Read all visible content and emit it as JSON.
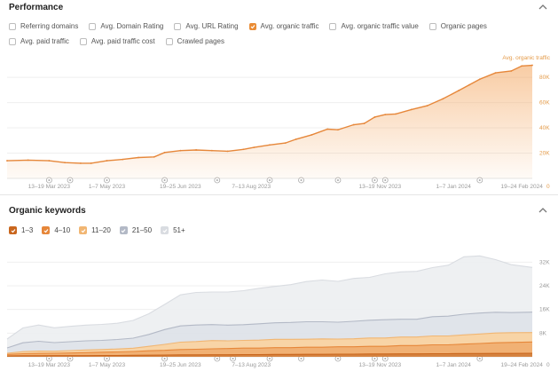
{
  "performance": {
    "title": "Performance",
    "metrics": [
      {
        "label": "Referring domains",
        "checked": false
      },
      {
        "label": "Avg. Domain Rating",
        "checked": false
      },
      {
        "label": "Avg. URL Rating",
        "checked": false
      },
      {
        "label": "Avg. organic traffic",
        "checked": true
      },
      {
        "label": "Avg. organic traffic value",
        "checked": false
      },
      {
        "label": "Organic pages",
        "checked": false
      },
      {
        "label": "Avg. paid traffic",
        "checked": false
      },
      {
        "label": "Avg. paid traffic cost",
        "checked": false
      },
      {
        "label": "Crawled pages",
        "checked": false
      }
    ]
  },
  "keywords": {
    "title": "Organic keywords",
    "legend": [
      {
        "label": "1–3",
        "checked": true,
        "color": "#c9661d"
      },
      {
        "label": "4–10",
        "checked": true,
        "color": "#e6873a"
      },
      {
        "label": "11–20",
        "checked": true,
        "color": "#f1b673"
      },
      {
        "label": "21–50",
        "checked": true,
        "color": "#b3b9c6"
      },
      {
        "label": "51+",
        "checked": true,
        "color": "#d9dce1"
      }
    ]
  },
  "colors": {
    "accent": "#ea8c35",
    "grid": "#efefef"
  },
  "chart_data": [
    {
      "type": "area",
      "series_label": "Avg. organic traffic",
      "ylim": [
        0,
        92000
      ],
      "yticks": [
        20000,
        40000,
        60000,
        80000
      ],
      "ytick_labels": [
        "20K",
        "40K",
        "60K",
        "80K"
      ],
      "zero_label": "0",
      "xlim": [
        0,
        100
      ],
      "xtick_labels": [
        {
          "t": 8,
          "label": "13–19 Mar 2023"
        },
        {
          "t": 19,
          "label": "1–7 May 2023"
        },
        {
          "t": 33,
          "label": "19–25 Jun 2023"
        },
        {
          "t": 46.5,
          "label": "7–13 Aug 2023"
        },
        {
          "t": 71,
          "label": "13–19 Nov 2023"
        },
        {
          "t": 85,
          "label": "1–7 Jan 2024"
        },
        {
          "t": 98,
          "label": "19–24 Feb 2024"
        }
      ],
      "annotation_t": [
        8,
        12,
        19,
        30,
        40,
        50,
        56,
        63,
        70,
        72,
        90
      ],
      "x": [
        0,
        4,
        8,
        11,
        14,
        16,
        19,
        22,
        25,
        28,
        30,
        33,
        36,
        39,
        42,
        45,
        47,
        50,
        53,
        55,
        58,
        61,
        63,
        66,
        68,
        70,
        72,
        74,
        77,
        80,
        83,
        86,
        88,
        90,
        93,
        96,
        98,
        100
      ],
      "y": [
        14000,
        14500,
        14000,
        12500,
        12000,
        12000,
        14000,
        15000,
        16500,
        17000,
        20500,
        22000,
        22500,
        22000,
        21500,
        23000,
        24500,
        26500,
        28000,
        31000,
        34500,
        39000,
        38500,
        42500,
        43500,
        48500,
        50500,
        51000,
        54500,
        57500,
        63000,
        69500,
        74000,
        78500,
        83500,
        85000,
        89000,
        89500
      ]
    },
    {
      "type": "area",
      "stacked": true,
      "ylim": [
        0,
        36000
      ],
      "yticks": [
        8000,
        16000,
        24000,
        32000
      ],
      "ytick_labels": [
        "8K",
        "16K",
        "24K",
        "32K"
      ],
      "zero_label": "0",
      "xlim": [
        0,
        100
      ],
      "xtick_labels": [
        {
          "t": 8,
          "label": "13–19 Mar 2023"
        },
        {
          "t": 19,
          "label": "1–7 May 2023"
        },
        {
          "t": 33,
          "label": "19–25 Jun 2023"
        },
        {
          "t": 46.5,
          "label": "7–13 Aug 2023"
        },
        {
          "t": 71,
          "label": "13–19 Nov 2023"
        },
        {
          "t": 85,
          "label": "1–7 Jan 2024"
        },
        {
          "t": 98,
          "label": "19–24 Feb 2024"
        }
      ],
      "annotation_t": [
        8,
        12,
        19,
        30,
        40,
        43,
        50,
        56,
        63,
        70,
        72,
        90
      ],
      "x": [
        0,
        3,
        6,
        9,
        12,
        15,
        18,
        21,
        24,
        27,
        30,
        33,
        36,
        39,
        42,
        45,
        48,
        51,
        54,
        57,
        60,
        63,
        66,
        69,
        72,
        75,
        78,
        81,
        84,
        87,
        90,
        93,
        96,
        100
      ],
      "series": [
        {
          "name": "1–3",
          "values": [
            300,
            350,
            350,
            400,
            400,
            400,
            450,
            450,
            500,
            550,
            600,
            650,
            650,
            700,
            700,
            750,
            750,
            800,
            800,
            850,
            850,
            900,
            900,
            950,
            950,
            1000,
            1000,
            1050,
            1050,
            1100,
            1100,
            1150,
            1150,
            1200
          ]
        },
        {
          "name": "4–10",
          "values": [
            500,
            700,
            800,
            800,
            900,
            1000,
            1100,
            1200,
            1300,
            1500,
            1600,
            1800,
            1900,
            2000,
            2100,
            2200,
            2200,
            2300,
            2300,
            2400,
            2400,
            2500,
            2500,
            2600,
            2600,
            2800,
            2800,
            3000,
            3000,
            3200,
            3400,
            3600,
            3700,
            3800
          ]
        },
        {
          "name": "11–20",
          "values": [
            400,
            700,
            800,
            700,
            800,
            900,
            900,
            1000,
            1100,
            1500,
            2000,
            2500,
            2600,
            2800,
            2600,
            2600,
            2700,
            2800,
            2800,
            2700,
            2800,
            2600,
            2700,
            2800,
            2800,
            2900,
            2900,
            3000,
            3000,
            3100,
            3200,
            3300,
            3300,
            3200
          ]
        },
        {
          "name": "21–50",
          "values": [
            1800,
            3000,
            3300,
            2900,
            3000,
            3100,
            3100,
            3200,
            3400,
            4000,
            5000,
            5500,
            5600,
            5400,
            5300,
            5300,
            5500,
            5600,
            5700,
            5900,
            5800,
            5700,
            5900,
            6000,
            6200,
            6000,
            6000,
            6500,
            6700,
            7000,
            7100,
            7000,
            6800,
            6900
          ]
        },
        {
          "name": "51+",
          "values": [
            3000,
            5000,
            5500,
            5000,
            5200,
            5300,
            5400,
            5500,
            6000,
            7000,
            8500,
            10500,
            11000,
            11000,
            11200,
            11500,
            12000,
            12300,
            12800,
            13600,
            14100,
            13800,
            14500,
            14500,
            15500,
            16000,
            16200,
            16600,
            17200,
            19400,
            19300,
            17800,
            16200,
            15100
          ]
        }
      ]
    }
  ]
}
